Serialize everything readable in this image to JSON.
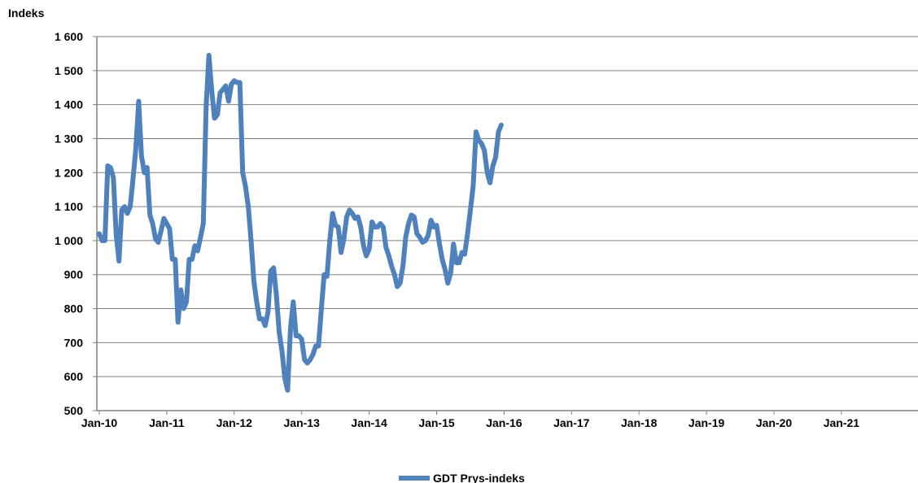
{
  "chart_data": {
    "type": "line",
    "title": "",
    "ylabel": "Indeks",
    "xlabel": "",
    "ylim": [
      500,
      1600
    ],
    "yticks": [
      500,
      600,
      700,
      800,
      900,
      1000,
      1100,
      1200,
      1300,
      1400,
      1500,
      1600
    ],
    "ytick_labels": [
      "500",
      "600",
      "700",
      "800",
      "900",
      "1 000",
      "1 100",
      "1 200",
      "1 300",
      "1 400",
      "1 500",
      "1 600"
    ],
    "xtick_labels": [
      "Jan-10",
      "Jan-11",
      "Jan-12",
      "Jan-13",
      "Jan-14",
      "Jan-15",
      "Jan-16",
      "Jan-17",
      "Jan-18",
      "Jan-19",
      "Jan-20",
      "Jan-21"
    ],
    "grid": true,
    "legend_position": "bottom",
    "colors": {
      "series": "#4F81BD",
      "grid": "#808080",
      "axis": "#808080"
    },
    "series": [
      {
        "name": "GDT Prys-indeks",
        "x_start": "Jan-10",
        "x_step": "half-month",
        "values": [
          1020,
          1000,
          1000,
          1220,
          1215,
          1185,
          1020,
          940,
          1090,
          1100,
          1080,
          1100,
          1180,
          1270,
          1410,
          1250,
          1200,
          1215,
          1075,
          1050,
          1005,
          995,
          1030,
          1065,
          1050,
          1035,
          945,
          945,
          760,
          855,
          800,
          820,
          945,
          945,
          985,
          970,
          1010,
          1050,
          1395,
          1545,
          1440,
          1360,
          1370,
          1435,
          1445,
          1455,
          1410,
          1460,
          1470,
          1465,
          1465,
          1200,
          1160,
          1100,
          1000,
          880,
          820,
          770,
          770,
          750,
          790,
          910,
          920,
          840,
          730,
          675,
          595,
          560,
          740,
          820,
          720,
          720,
          710,
          650,
          640,
          650,
          665,
          690,
          690,
          800,
          900,
          895,
          1000,
          1080,
          1045,
          1040,
          965,
          1005,
          1070,
          1090,
          1080,
          1065,
          1070,
          1040,
          985,
          955,
          975,
          1055,
          1040,
          1040,
          1050,
          1040,
          980,
          955,
          925,
          900,
          865,
          875,
          925,
          1010,
          1050,
          1075,
          1070,
          1020,
          1010,
          995,
          1000,
          1015,
          1060,
          1040,
          1045,
          990,
          945,
          915,
          875,
          905,
          990,
          935,
          935,
          965,
          960,
          1020,
          1090,
          1160,
          1320,
          1295,
          1285,
          1265,
          1200,
          1170,
          1220,
          1245,
          1320,
          1340
        ]
      }
    ]
  }
}
